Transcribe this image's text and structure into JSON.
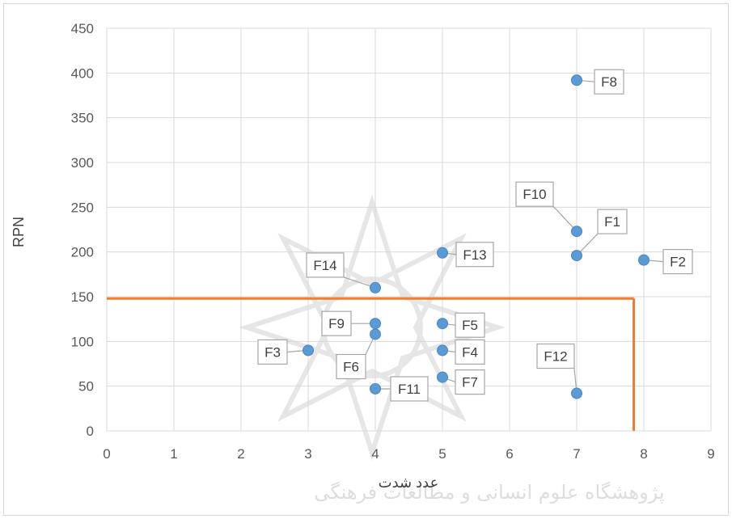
{
  "chart_data": {
    "type": "scatter",
    "title": "",
    "xlabel": "عدد شدت",
    "ylabel": "RPN",
    "xlim": [
      0,
      9
    ],
    "ylim": [
      0,
      450
    ],
    "xticks": [
      0,
      1,
      2,
      3,
      4,
      5,
      6,
      7,
      8,
      9
    ],
    "yticks": [
      0,
      50,
      100,
      150,
      200,
      250,
      300,
      350,
      400,
      450
    ],
    "grid": true,
    "legend": "none",
    "marker_color": "#5b9bd5",
    "threshold_color": "#ed7d31",
    "threshold": {
      "rpn": 148,
      "severity": 7.85
    },
    "points": [
      {
        "label": "F1",
        "x": 7,
        "y": 196
      },
      {
        "label": "F2",
        "x": 8,
        "y": 191
      },
      {
        "label": "F3",
        "x": 3,
        "y": 90
      },
      {
        "label": "F4",
        "x": 5,
        "y": 90
      },
      {
        "label": "F5",
        "x": 5,
        "y": 120
      },
      {
        "label": "F6",
        "x": 4,
        "y": 108
      },
      {
        "label": "F7",
        "x": 5,
        "y": 60
      },
      {
        "label": "F8",
        "x": 7,
        "y": 392
      },
      {
        "label": "F9",
        "x": 4,
        "y": 120
      },
      {
        "label": "F10",
        "x": 7,
        "y": 223
      },
      {
        "label": "F11",
        "x": 4,
        "y": 47
      },
      {
        "label": "F12",
        "x": 7,
        "y": 42
      },
      {
        "label": "F13",
        "x": 5,
        "y": 199
      },
      {
        "label": "F14",
        "x": 4,
        "y": 160
      }
    ]
  },
  "watermark": {
    "emblem": "star-emblem-icon",
    "text": "پژوهشگاه علوم انسانی و مطالعات فرهنگی"
  }
}
